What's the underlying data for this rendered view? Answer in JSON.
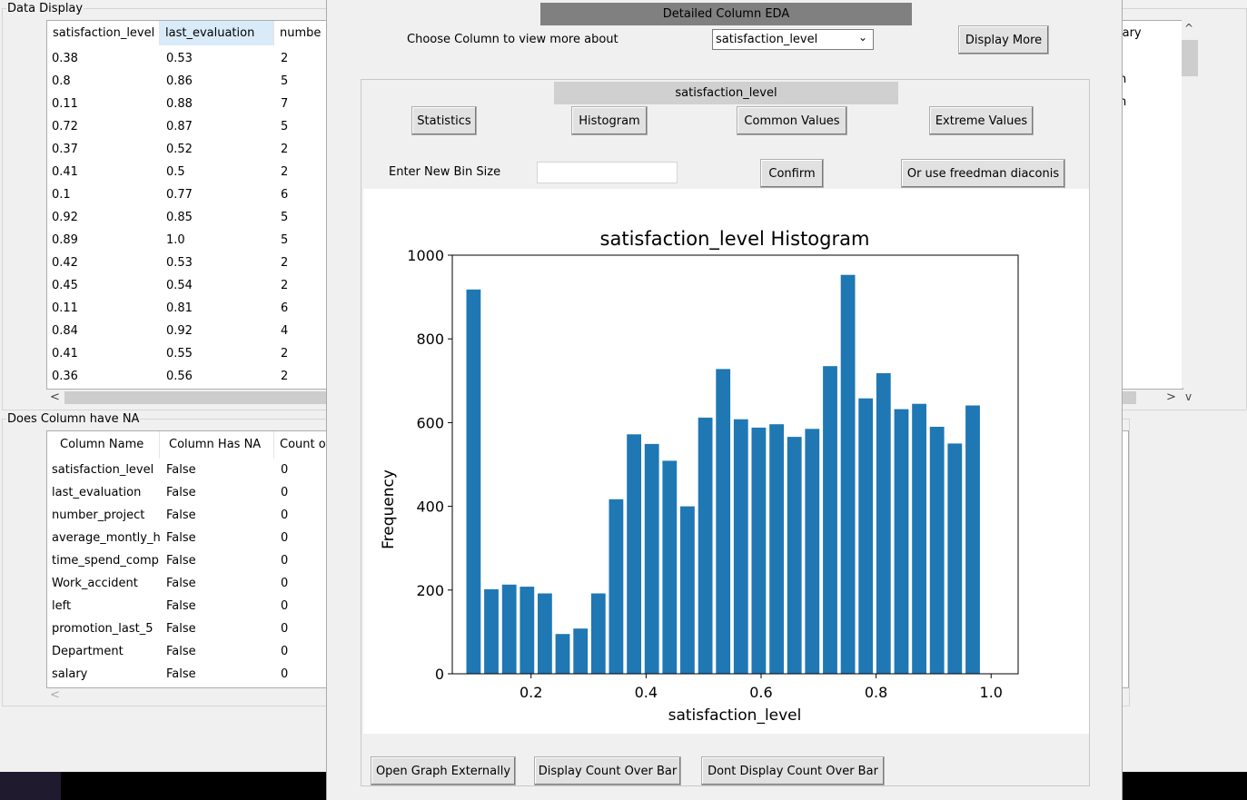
{
  "data_display": {
    "title": "Data Display",
    "columns": [
      "satisfaction_level",
      "last_evaluation",
      "numbe"
    ],
    "rows": [
      [
        "0.38",
        "0.53",
        "2"
      ],
      [
        "0.8",
        "0.86",
        "5"
      ],
      [
        "0.11",
        "0.88",
        "7"
      ],
      [
        "0.72",
        "0.87",
        "5"
      ],
      [
        "0.37",
        "0.52",
        "2"
      ],
      [
        "0.41",
        "0.5",
        "2"
      ],
      [
        "0.1",
        "0.77",
        "6"
      ],
      [
        "0.92",
        "0.85",
        "5"
      ],
      [
        "0.89",
        "1.0",
        "5"
      ],
      [
        "0.42",
        "0.53",
        "2"
      ],
      [
        "0.45",
        "0.54",
        "2"
      ],
      [
        "0.11",
        "0.81",
        "6"
      ],
      [
        "0.84",
        "0.92",
        "4"
      ],
      [
        "0.41",
        "0.55",
        "2"
      ],
      [
        "0.36",
        "0.56",
        "2"
      ]
    ],
    "right_header_fragment": "lary",
    "right_fragments": [
      "n",
      "n"
    ],
    "scroll_left": "<",
    "scroll_right": ">",
    "scroll_up": "^",
    "scroll_down": "v"
  },
  "na_panel": {
    "title": "Does Column have NA",
    "columns": [
      "Column Name",
      "Column Has NA",
      "Count o"
    ],
    "rows": [
      [
        "satisfaction_level",
        "False",
        "0"
      ],
      [
        "last_evaluation",
        "False",
        "0"
      ],
      [
        "number_project",
        "False",
        "0"
      ],
      [
        "average_montly_h",
        "False",
        "0"
      ],
      [
        "time_spend_comp",
        "False",
        "0"
      ],
      [
        "Work_accident",
        "False",
        "0"
      ],
      [
        "left",
        "False",
        "0"
      ],
      [
        "promotion_last_5",
        "False",
        "0"
      ],
      [
        "Department",
        "False",
        "0"
      ],
      [
        "salary",
        "False",
        "0"
      ]
    ],
    "scroll_left": "<"
  },
  "eda": {
    "header": "Detailed Column EDA",
    "choose_label": "Choose Column to view more about",
    "selected_column": "satisfaction_level",
    "display_more": "Display More",
    "section_title": "satisfaction_level",
    "buttons": {
      "statistics": "Statistics",
      "histogram": "Histogram",
      "common_values": "Common Values",
      "extreme_values": "Extreme Values"
    },
    "bin_label": "Enter New Bin Size",
    "bin_value": "",
    "confirm": "Confirm",
    "freedman": "Or use freedman diaconis",
    "bottom_buttons": {
      "open_external": "Open Graph Externally",
      "display_count": "Display Count Over Bar",
      "dont_display_count": "Dont Display Count Over Bar"
    }
  },
  "chart_data": {
    "type": "bar",
    "title": "satisfaction_level Histogram",
    "xlabel": "satisfaction_level",
    "ylabel": "Frequency",
    "color": "#1f77b4",
    "xlim": [
      0.063,
      1.047
    ],
    "ylim": [
      0,
      1000
    ],
    "xticks": [
      0.2,
      0.4,
      0.6,
      0.8,
      1.0
    ],
    "xtick_labels": [
      "0.2",
      "0.4",
      "0.6",
      "0.8",
      "1.0"
    ],
    "yticks": [
      0,
      200,
      400,
      600,
      800,
      1000
    ],
    "ytick_labels": [
      "0",
      "200",
      "400",
      "600",
      "800",
      "1000"
    ],
    "bar_width": 0.025,
    "x": [
      0.1,
      0.131,
      0.162,
      0.193,
      0.224,
      0.255,
      0.286,
      0.317,
      0.348,
      0.379,
      0.41,
      0.441,
      0.472,
      0.503,
      0.534,
      0.565,
      0.596,
      0.627,
      0.658,
      0.689,
      0.72,
      0.751,
      0.782,
      0.813,
      0.844,
      0.875,
      0.906,
      0.937,
      0.968
    ],
    "values": [
      918,
      202,
      213,
      208,
      192,
      95,
      108,
      192,
      417,
      572,
      549,
      509,
      400,
      612,
      728,
      608,
      588,
      596,
      566,
      585,
      735,
      953,
      658,
      718,
      632,
      645,
      590,
      550,
      641
    ]
  }
}
